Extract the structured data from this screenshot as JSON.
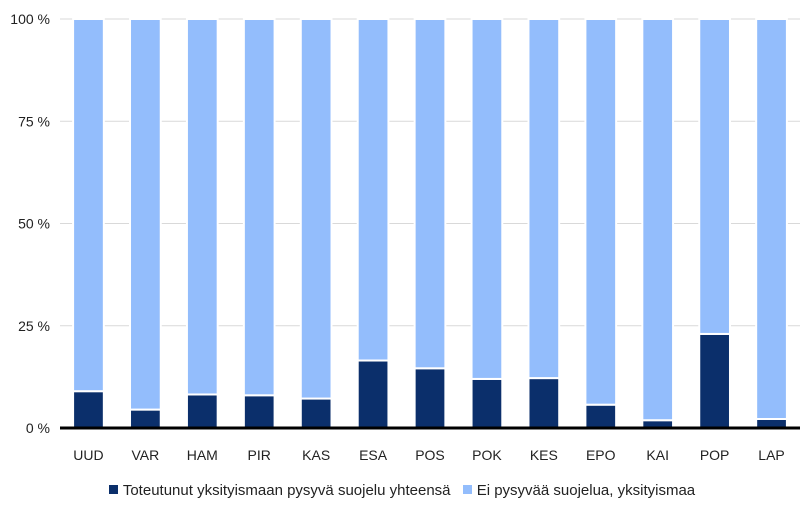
{
  "chart_data": {
    "type": "bar",
    "stacked": true,
    "categories": [
      "UUD",
      "VAR",
      "HAM",
      "PIR",
      "KAS",
      "ESA",
      "POS",
      "POK",
      "KES",
      "EPO",
      "KAI",
      "POP",
      "LAP"
    ],
    "series": [
      {
        "name": "Toteutunut yksityismaan pysyvä suojelu yhteensä",
        "color": "#0b2f6b",
        "values": [
          9,
          4.5,
          8.2,
          8,
          7.2,
          16.5,
          14.6,
          12,
          12.2,
          5.7,
          1.9,
          23,
          2.2
        ]
      },
      {
        "name": "Ei pysyvää suojelua, yksityismaa",
        "color": "#93bdfc",
        "values": [
          91,
          95.5,
          91.8,
          92,
          92.8,
          83.5,
          85.4,
          88,
          87.8,
          94.3,
          98.1,
          77,
          97.8
        ]
      }
    ],
    "yticks": [
      "0 %",
      "25 %",
      "50 %",
      "75 %",
      "100 %"
    ],
    "ylim": [
      0,
      100
    ],
    "grid": true,
    "legend_position": "bottom"
  }
}
